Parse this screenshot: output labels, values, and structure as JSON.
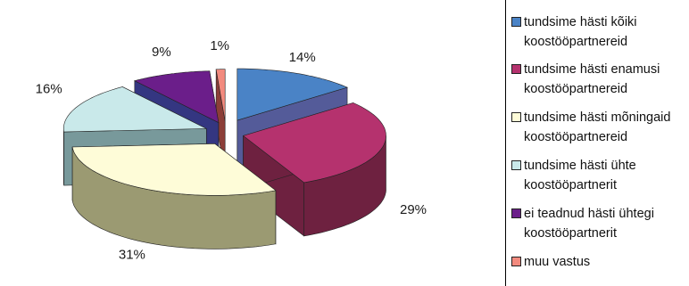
{
  "chart_data": {
    "type": "pie",
    "style": "3d-exploded",
    "categories": [
      "tundsime hästi kõiki koostööpartnereid",
      "tundsime hästi enamusi koostööpartnereid",
      "tundsime hästi mõningaid koostööpartnereid",
      "tundsime hästi ühte koostööpartnerit",
      "ei teadnud hästi ühtegi koostööpartnerit",
      "muu vastus"
    ],
    "values": [
      14,
      29,
      31,
      16,
      9,
      1
    ],
    "value_labels": [
      "14%",
      "29%",
      "31%",
      "16%",
      "9%",
      "1%"
    ],
    "colors": [
      "#4A83C6",
      "#B5326E",
      "#FEFCD8",
      "#C9E9EA",
      "#6B1E8A",
      "#F28A7E"
    ],
    "side_colors": [
      "#545B99",
      "#6E2140",
      "#9B9A72",
      "#78999B",
      "#343681",
      "#8C3E38"
    ],
    "title": "",
    "legend_position": "right"
  },
  "legend": {
    "items": [
      {
        "line1": "tundsime hästi kõiki",
        "line2": "koostööpartnereid"
      },
      {
        "line1": "tundsime hästi enamusi",
        "line2": "koostööpartnereid"
      },
      {
        "line1": "tundsime hästi mõningaid",
        "line2": "koostööpartnereid"
      },
      {
        "line1": "tundsime hästi ühte",
        "line2": "koostööpartnerit"
      },
      {
        "line1": "ei teadnud hästi ühtegi",
        "line2": "koostööpartnerit"
      },
      {
        "line1": "muu vastus",
        "line2": ""
      }
    ]
  }
}
